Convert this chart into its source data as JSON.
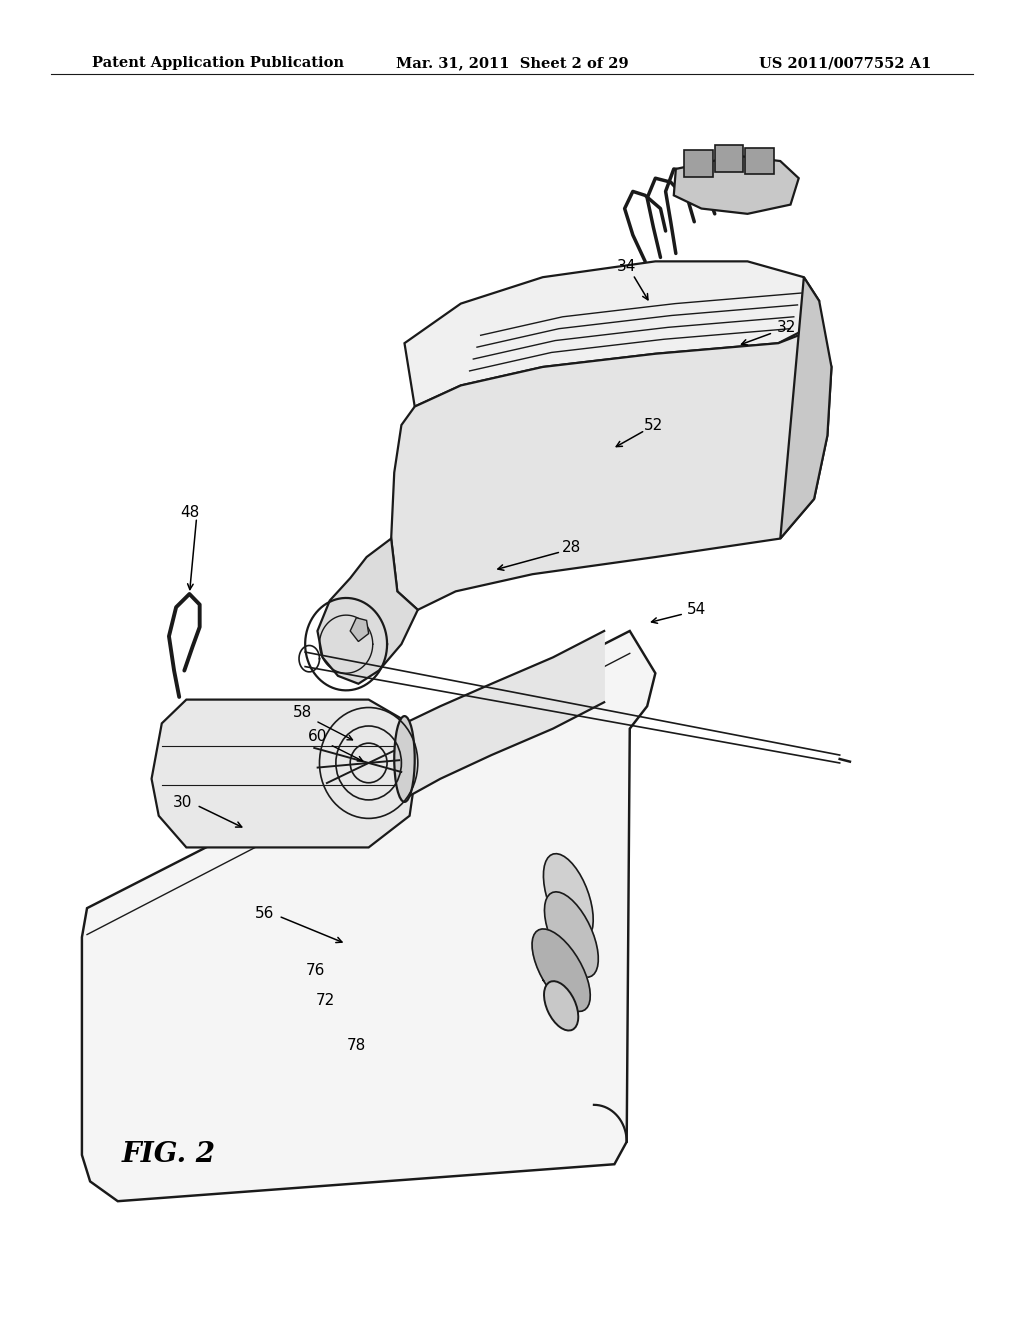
{
  "background_color": "#ffffff",
  "header_left": "Patent Application Publication",
  "header_center": "Mar. 31, 2011  Sheet 2 of 29",
  "header_right": "US 2011/0077552 A1",
  "figure_label": "FIG. 2",
  "text_color": "#000000",
  "line_color": "#1a1a1a",
  "header_fontsize": 10.5,
  "label_fontsize": 11,
  "fig2_fontsize": 20
}
